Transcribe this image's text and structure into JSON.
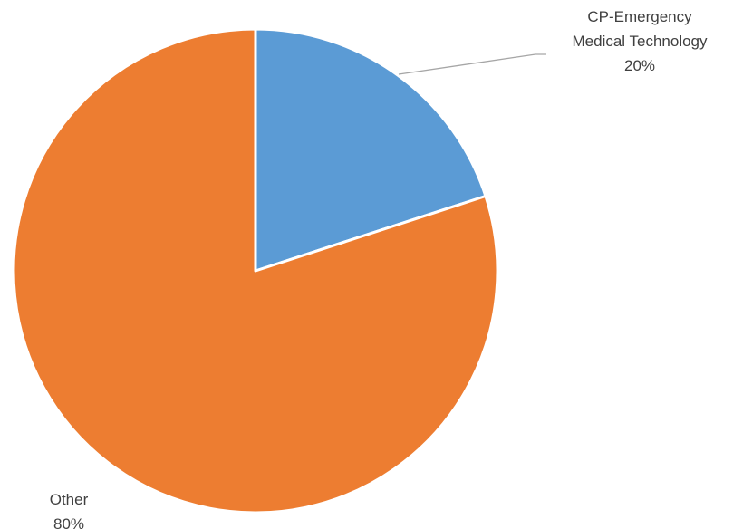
{
  "chart_data": {
    "type": "pie",
    "title": "",
    "start_angle_deg": 0,
    "direction": "clockwise",
    "slices": [
      {
        "label": "CP-Emergency Medical Technology",
        "label_lines": [
          "CP-Emergency",
          "Medical Technology"
        ],
        "value": 20,
        "percent_label": "20%",
        "color": "#5b9bd5"
      },
      {
        "label": "Other",
        "label_lines": [
          "Other"
        ],
        "value": 80,
        "percent_label": "80%",
        "color": "#ed7d31"
      }
    ],
    "legend": "none",
    "data_labels": "outside-end with leader line"
  }
}
